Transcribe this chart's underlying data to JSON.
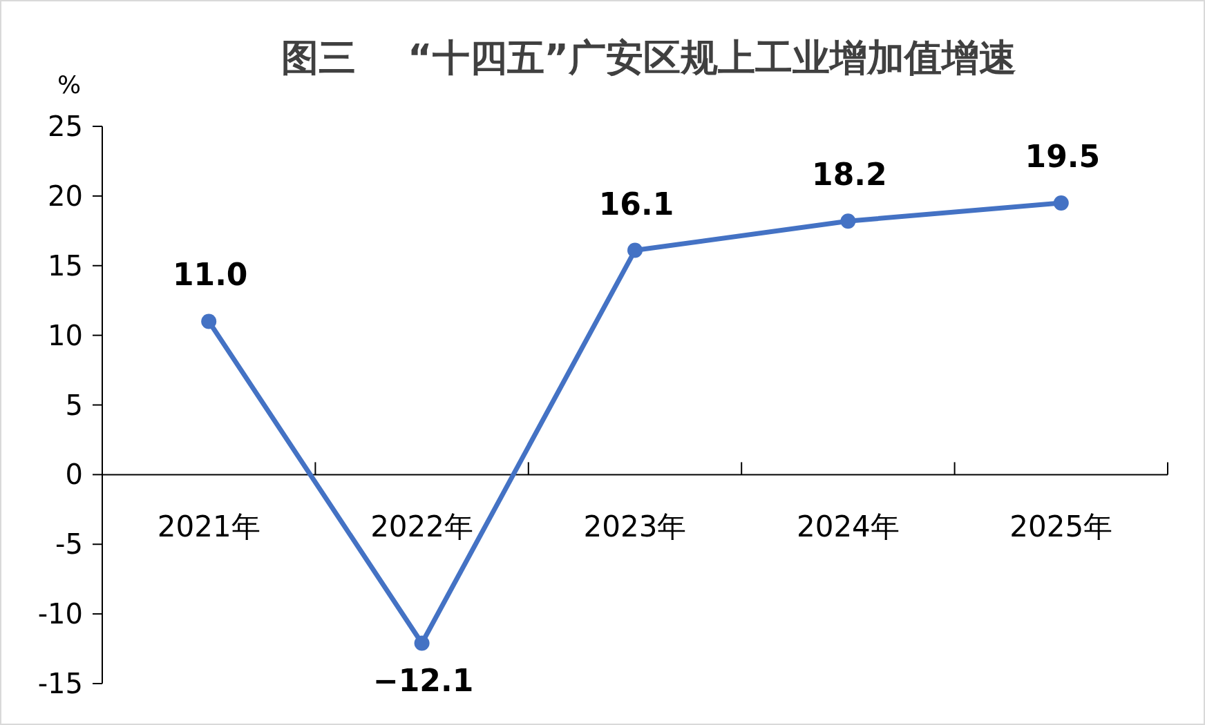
{
  "chart_data": {
    "type": "line",
    "title": "图三    “十四五”广安区规上工业增加值增速",
    "ylabel": "%",
    "categories": [
      "2021年",
      "2022年",
      "2023年",
      "2024年",
      "2025年"
    ],
    "series": [
      {
        "color": "#4472c4",
        "values": [
          11.0,
          -12.1,
          16.1,
          18.2,
          19.5
        ],
        "value_labels": [
          "11.0",
          "−12.1",
          "16.1",
          "18.2",
          "19.5"
        ]
      }
    ],
    "ylim": [
      -15,
      25
    ],
    "yticks": [
      -15,
      -10,
      -5,
      0,
      5,
      10,
      15,
      20,
      25
    ],
    "grid": false,
    "marker": "circle",
    "line_style": "solid"
  }
}
